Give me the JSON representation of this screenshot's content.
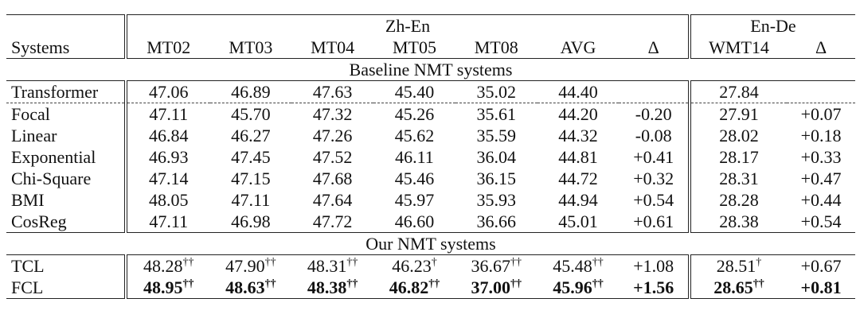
{
  "table": {
    "group_headers": [
      "Zh-En",
      "En-De"
    ],
    "columns": [
      "Systems",
      "MT02",
      "MT03",
      "MT04",
      "MT05",
      "MT08",
      "AVG",
      "Δ",
      "WMT14",
      "Δ"
    ],
    "sections": [
      {
        "title": "Baseline NMT systems",
        "rows": [
          {
            "cells": [
              "Transformer",
              "47.06",
              "46.89",
              "47.63",
              "45.40",
              "35.02",
              "44.40",
              null,
              "27.84",
              null
            ]
          },
          {
            "cells": [
              "Focal",
              "47.11",
              "45.70",
              "47.32",
              "45.26",
              "35.61",
              "44.20",
              "-0.20",
              "27.91",
              "+0.07"
            ]
          },
          {
            "cells": [
              "Linear",
              "46.84",
              "46.27",
              "47.26",
              "45.62",
              "35.59",
              "44.32",
              "-0.08",
              "28.02",
              "+0.18"
            ]
          },
          {
            "cells": [
              "Exponential",
              "46.93",
              "47.45",
              "47.52",
              "46.11",
              "36.04",
              "44.81",
              "+0.41",
              "28.17",
              "+0.33"
            ]
          },
          {
            "cells": [
              "Chi-Square",
              "47.14",
              "47.15",
              "47.68",
              "45.46",
              "36.15",
              "44.72",
              "+0.32",
              "28.31",
              "+0.47"
            ]
          },
          {
            "cells": [
              "BMI",
              "48.05",
              "47.11",
              "47.64",
              "45.97",
              "35.93",
              "44.94",
              "+0.54",
              "28.28",
              "+0.44"
            ]
          },
          {
            "cells": [
              "CosReg",
              "47.11",
              "46.98",
              "47.72",
              "46.60",
              "36.66",
              "45.01",
              "+0.61",
              "28.38",
              "+0.54"
            ]
          }
        ]
      },
      {
        "title": "Our NMT systems",
        "rows": [
          {
            "cells": [
              "TCL",
              [
                "48.28",
                "††"
              ],
              [
                "47.90",
                "††"
              ],
              [
                "48.31",
                "††"
              ],
              [
                "46.23",
                "†"
              ],
              [
                "36.67",
                "††"
              ],
              [
                "45.48",
                "††"
              ],
              "+1.08",
              [
                "28.51",
                "†"
              ],
              "+0.67"
            ]
          },
          {
            "bold": true,
            "cells": [
              "FCL",
              [
                "48.95",
                "††"
              ],
              [
                "48.63",
                "††"
              ],
              [
                "48.38",
                "††"
              ],
              [
                "46.82",
                "††"
              ],
              [
                "37.00",
                "††"
              ],
              [
                "45.96",
                "††"
              ],
              "+1.56",
              [
                "28.65",
                "††"
              ],
              "+0.81"
            ]
          }
        ]
      }
    ]
  }
}
